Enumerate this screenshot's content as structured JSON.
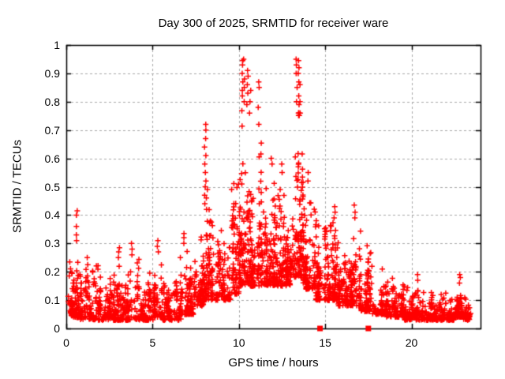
{
  "chart_data": {
    "type": "scatter",
    "title": "Day 300 of 2025, SRMTID for receiver ware",
    "xlabel": "GPS time / hours",
    "ylabel": "SRMTID / TECUs",
    "xlim": [
      0,
      24
    ],
    "ylim": [
      0,
      1
    ],
    "xticks": {
      "values": [
        0,
        5,
        10,
        15,
        20
      ],
      "labels": [
        "0",
        "5",
        "10",
        "15",
        "20"
      ]
    },
    "yticks": {
      "values": [
        0,
        0.1,
        0.2,
        0.3,
        0.4,
        0.5,
        0.6,
        0.7,
        0.8,
        0.9,
        1
      ],
      "labels": [
        "0",
        "0.1",
        "0.2",
        "0.3",
        "0.4",
        "0.5",
        "0.6",
        "0.7",
        "0.8",
        "0.9",
        "1"
      ]
    },
    "grid": true,
    "legend": "none",
    "marker": {
      "glyph": "+",
      "size": 7,
      "color": "#ff0000"
    },
    "colors": {
      "marker": "#ff0000",
      "grid": "#a9a9a9",
      "axis": "#000000",
      "background": "#ffffff",
      "text": "#000000"
    },
    "seed": 300,
    "bands": [
      {
        "x0": 0.0,
        "x1": 0.8,
        "n": 90,
        "y_lo": 0.04,
        "y_hi": 0.3,
        "bias": 1.6
      },
      {
        "x0": 0.8,
        "x1": 2.0,
        "n": 140,
        "y_lo": 0.03,
        "y_hi": 0.26,
        "bias": 1.8
      },
      {
        "x0": 2.0,
        "x1": 3.0,
        "n": 110,
        "y_lo": 0.03,
        "y_hi": 0.22,
        "bias": 1.8
      },
      {
        "x0": 3.0,
        "x1": 4.2,
        "n": 130,
        "y_lo": 0.03,
        "y_hi": 0.26,
        "bias": 1.8
      },
      {
        "x0": 4.2,
        "x1": 5.0,
        "n": 95,
        "y_lo": 0.03,
        "y_hi": 0.22,
        "bias": 1.8
      },
      {
        "x0": 5.0,
        "x1": 5.6,
        "n": 70,
        "y_lo": 0.04,
        "y_hi": 0.28,
        "bias": 1.7
      },
      {
        "x0": 5.6,
        "x1": 6.6,
        "n": 110,
        "y_lo": 0.03,
        "y_hi": 0.21,
        "bias": 1.8
      },
      {
        "x0": 6.6,
        "x1": 7.4,
        "n": 100,
        "y_lo": 0.05,
        "y_hi": 0.3,
        "bias": 1.7
      },
      {
        "x0": 7.4,
        "x1": 8.0,
        "n": 80,
        "y_lo": 0.08,
        "y_hi": 0.4,
        "bias": 1.4
      },
      {
        "x0": 8.0,
        "x1": 8.7,
        "n": 95,
        "y_lo": 0.1,
        "y_hi": 0.46,
        "bias": 1.4
      },
      {
        "x0": 8.7,
        "x1": 9.6,
        "n": 100,
        "y_lo": 0.1,
        "y_hi": 0.45,
        "bias": 1.4
      },
      {
        "x0": 9.6,
        "x1": 10.0,
        "n": 70,
        "y_lo": 0.12,
        "y_hi": 0.58,
        "bias": 1.3
      },
      {
        "x0": 10.0,
        "x1": 10.7,
        "n": 130,
        "y_lo": 0.15,
        "y_hi": 0.8,
        "bias": 1.3
      },
      {
        "x0": 10.7,
        "x1": 11.4,
        "n": 115,
        "y_lo": 0.15,
        "y_hi": 0.68,
        "bias": 1.3
      },
      {
        "x0": 11.4,
        "x1": 12.2,
        "n": 120,
        "y_lo": 0.15,
        "y_hi": 0.56,
        "bias": 1.3
      },
      {
        "x0": 12.2,
        "x1": 13.0,
        "n": 120,
        "y_lo": 0.15,
        "y_hi": 0.52,
        "bias": 1.3
      },
      {
        "x0": 13.0,
        "x1": 13.7,
        "n": 115,
        "y_lo": 0.18,
        "y_hi": 0.78,
        "bias": 1.3
      },
      {
        "x0": 13.7,
        "x1": 14.5,
        "n": 120,
        "y_lo": 0.14,
        "y_hi": 0.52,
        "bias": 1.3
      },
      {
        "x0": 14.5,
        "x1": 15.3,
        "n": 110,
        "y_lo": 0.1,
        "y_hi": 0.4,
        "bias": 1.4
      },
      {
        "x0": 15.3,
        "x1": 15.8,
        "n": 80,
        "y_lo": 0.1,
        "y_hi": 0.42,
        "bias": 1.3
      },
      {
        "x0": 15.8,
        "x1": 16.5,
        "n": 90,
        "y_lo": 0.08,
        "y_hi": 0.34,
        "bias": 1.5
      },
      {
        "x0": 16.5,
        "x1": 17.1,
        "n": 90,
        "y_lo": 0.08,
        "y_hi": 0.42,
        "bias": 1.4
      },
      {
        "x0": 17.1,
        "x1": 17.8,
        "n": 100,
        "y_lo": 0.06,
        "y_hi": 0.32,
        "bias": 1.6
      },
      {
        "x0": 17.8,
        "x1": 18.6,
        "n": 100,
        "y_lo": 0.05,
        "y_hi": 0.23,
        "bias": 1.7
      },
      {
        "x0": 18.6,
        "x1": 19.6,
        "n": 110,
        "y_lo": 0.04,
        "y_hi": 0.18,
        "bias": 1.6
      },
      {
        "x0": 19.6,
        "x1": 20.6,
        "n": 110,
        "y_lo": 0.03,
        "y_hi": 0.19,
        "bias": 1.6
      },
      {
        "x0": 20.6,
        "x1": 21.6,
        "n": 110,
        "y_lo": 0.03,
        "y_hi": 0.14,
        "bias": 1.6
      },
      {
        "x0": 21.6,
        "x1": 22.5,
        "n": 100,
        "y_lo": 0.03,
        "y_hi": 0.13,
        "bias": 1.6
      },
      {
        "x0": 22.5,
        "x1": 23.0,
        "n": 70,
        "y_lo": 0.04,
        "y_hi": 0.18,
        "bias": 1.4
      },
      {
        "x0": 23.0,
        "x1": 23.4,
        "n": 60,
        "y_lo": 0.03,
        "y_hi": 0.11,
        "bias": 1.5
      }
    ],
    "spikes": [
      {
        "x": 0.6,
        "ys": [
          0.31,
          0.33,
          0.36,
          0.4,
          0.415
        ]
      },
      {
        "x": 3.05,
        "ys": [
          0.25,
          0.27,
          0.285
        ]
      },
      {
        "x": 3.8,
        "ys": [
          0.26,
          0.28,
          0.3
        ]
      },
      {
        "x": 5.3,
        "ys": [
          0.27,
          0.29,
          0.31
        ]
      },
      {
        "x": 6.8,
        "ys": [
          0.3,
          0.32,
          0.335
        ]
      },
      {
        "x": 8.05,
        "ys": [
          0.44,
          0.47,
          0.5,
          0.52,
          0.55,
          0.58,
          0.61,
          0.64,
          0.67,
          0.7,
          0.72
        ]
      },
      {
        "x": 8.15,
        "ys": [
          0.42,
          0.46,
          0.49
        ]
      },
      {
        "x": 10.2,
        "ys": [
          0.82,
          0.84,
          0.87,
          0.9,
          0.93,
          0.945
        ]
      },
      {
        "x": 10.3,
        "ys": [
          0.8,
          0.85,
          0.88,
          0.95
        ]
      },
      {
        "x": 10.5,
        "ys": [
          0.79,
          0.83,
          0.86,
          0.89,
          0.91
        ]
      },
      {
        "x": 10.65,
        "ys": [
          0.76,
          0.8,
          0.84
        ]
      },
      {
        "x": 11.15,
        "ys": [
          0.72,
          0.78,
          0.85,
          0.87
        ]
      },
      {
        "x": 11.9,
        "ys": [
          0.58,
          0.6
        ]
      },
      {
        "x": 12.5,
        "ys": [
          0.55,
          0.58
        ]
      },
      {
        "x": 13.35,
        "ys": [
          0.8,
          0.85,
          0.9,
          0.93,
          0.95
        ]
      },
      {
        "x": 13.45,
        "ys": [
          0.76,
          0.79,
          0.82,
          0.87,
          0.9,
          0.92,
          0.945
        ]
      },
      {
        "x": 13.55,
        "ys": [
          0.76,
          0.8,
          0.86
        ]
      },
      {
        "x": 14.0,
        "ys": [
          0.52,
          0.55
        ]
      },
      {
        "x": 15.55,
        "ys": [
          0.39,
          0.41,
          0.43
        ]
      },
      {
        "x": 16.7,
        "ys": [
          0.39,
          0.41,
          0.435
        ]
      },
      {
        "x": 20.35,
        "ys": [
          0.17,
          0.19
        ]
      },
      {
        "x": 22.8,
        "ys": [
          0.16,
          0.18,
          0.19
        ]
      }
    ],
    "axis_squares": {
      "shape": "filled-square",
      "color": "#ff0000",
      "y": 0,
      "x_values": [
        14.7,
        17.5
      ]
    }
  }
}
